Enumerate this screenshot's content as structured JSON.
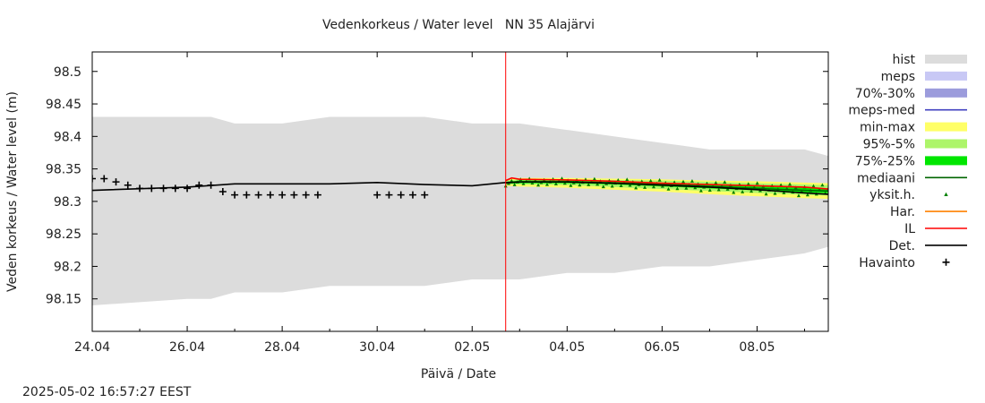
{
  "chart_data": {
    "type": "line",
    "title": "Vedenkorkeus / Water level   NN 35 Alajärvi",
    "xlabel": "Päivä / Date",
    "ylabel": "Veden korkeus / Water level (m)",
    "x_range": [
      "2025-04-24",
      "2025-05-09T12:00"
    ],
    "ylim": [
      98.1,
      98.53
    ],
    "x_ticks": [
      "24.04",
      "26.04",
      "28.04",
      "30.04",
      "02.05",
      "04.05",
      "06.05",
      "08.05"
    ],
    "y_ticks": [
      "98.15",
      "98.2",
      "98.25",
      "98.3",
      "98.35",
      "98.4",
      "98.45",
      "98.5"
    ],
    "current_time": "2025-05-02T16:57",
    "grid": false,
    "legend_position": "right",
    "legend": [
      {
        "label": "hist",
        "color": "#dcdcdc",
        "kind": "band"
      },
      {
        "label": "meps",
        "color": "#c8c8f5",
        "kind": "band"
      },
      {
        "label": "70%-30%",
        "color": "#9c9cdc",
        "kind": "band"
      },
      {
        "label": "meps-med",
        "color": "#4040c0",
        "kind": "line"
      },
      {
        "label": "min-max",
        "color": "#ffff66",
        "kind": "band"
      },
      {
        "label": "95%-5%",
        "color": "#adf56a",
        "kind": "band"
      },
      {
        "label": "75%-25%",
        "color": "#00e600",
        "kind": "band"
      },
      {
        "label": "mediaani",
        "color": "#006400",
        "kind": "line"
      },
      {
        "label": "yksit.h.",
        "color": "#008000",
        "kind": "marker"
      },
      {
        "label": "Har.",
        "color": "#ff8000",
        "kind": "line"
      },
      {
        "label": "IL",
        "color": "#ff0000",
        "kind": "line"
      },
      {
        "label": "Det.",
        "color": "#000000",
        "kind": "line"
      },
      {
        "label": "Havainto",
        "color": "#000000",
        "kind": "plus"
      }
    ],
    "series": [
      {
        "name": "hist",
        "kind": "band",
        "x": [
          "2025-04-24",
          "2025-04-26",
          "2025-04-26T12:00",
          "2025-04-27",
          "2025-04-28",
          "2025-04-29",
          "2025-04-30",
          "2025-05-01",
          "2025-05-02",
          "2025-05-03",
          "2025-05-04",
          "2025-05-05",
          "2025-05-06",
          "2025-05-07",
          "2025-05-08",
          "2025-05-09",
          "2025-05-09T12:00"
        ],
        "lower": [
          98.14,
          98.15,
          98.15,
          98.16,
          98.16,
          98.17,
          98.17,
          98.17,
          98.18,
          98.18,
          98.19,
          98.19,
          98.2,
          98.2,
          98.21,
          98.22,
          98.23
        ],
        "upper": [
          98.43,
          98.43,
          98.43,
          98.42,
          98.42,
          98.43,
          98.43,
          98.43,
          98.42,
          98.42,
          98.41,
          98.4,
          98.39,
          98.38,
          98.38,
          98.38,
          98.37
        ]
      },
      {
        "name": "Det.",
        "kind": "line",
        "x": [
          "2025-04-24",
          "2025-04-26",
          "2025-04-27",
          "2025-04-28",
          "2025-04-29",
          "2025-04-30",
          "2025-05-01",
          "2025-05-02",
          "2025-05-02T16:57",
          "2025-05-03",
          "2025-05-04",
          "2025-05-05",
          "2025-05-06",
          "2025-05-07",
          "2025-05-08",
          "2025-05-09",
          "2025-05-09T12:00"
        ],
        "y": [
          98.317,
          98.322,
          98.327,
          98.327,
          98.327,
          98.329,
          98.326,
          98.324,
          98.329,
          98.33,
          98.33,
          98.328,
          98.325,
          98.322,
          98.318,
          98.313,
          98.311
        ]
      },
      {
        "name": "IL",
        "kind": "line",
        "x": [
          "2025-05-02T16:57",
          "2025-05-02T20:00",
          "2025-05-03",
          "2025-05-04",
          "2025-05-05",
          "2025-05-06",
          "2025-05-07",
          "2025-05-08",
          "2025-05-09",
          "2025-05-09T12:00"
        ],
        "y": [
          98.332,
          98.336,
          98.334,
          98.333,
          98.331,
          98.328,
          98.326,
          98.324,
          98.322,
          98.319
        ]
      },
      {
        "name": "mediaani",
        "kind": "line",
        "x": [
          "2025-05-02T16:57",
          "2025-05-03",
          "2025-05-04",
          "2025-05-05",
          "2025-05-06",
          "2025-05-07",
          "2025-05-08",
          "2025-05-09",
          "2025-05-09T12:00"
        ],
        "y": [
          98.328,
          98.33,
          98.33,
          98.328,
          98.326,
          98.323,
          98.32,
          98.317,
          98.316
        ]
      },
      {
        "name": "min-max",
        "kind": "band",
        "x": [
          "2025-05-02T16:57",
          "2025-05-03",
          "2025-05-04",
          "2025-05-05",
          "2025-05-06",
          "2025-05-07",
          "2025-05-08",
          "2025-05-09",
          "2025-05-09T12:00"
        ],
        "lower": [
          98.324,
          98.323,
          98.321,
          98.318,
          98.315,
          98.311,
          98.308,
          98.305,
          98.304
        ],
        "upper": [
          98.334,
          98.336,
          98.336,
          98.335,
          98.334,
          98.332,
          98.331,
          98.329,
          98.328
        ]
      },
      {
        "name": "95%-5%",
        "kind": "band",
        "x": [
          "2025-05-02T16:57",
          "2025-05-03",
          "2025-05-04",
          "2025-05-05",
          "2025-05-06",
          "2025-05-07",
          "2025-05-08",
          "2025-05-09",
          "2025-05-09T12:00"
        ],
        "lower": [
          98.326,
          98.326,
          98.325,
          98.322,
          98.319,
          98.316,
          98.313,
          98.31,
          98.309
        ],
        "upper": [
          98.332,
          98.334,
          98.334,
          98.333,
          98.332,
          98.33,
          98.328,
          98.326,
          98.325
        ]
      },
      {
        "name": "75%-25%",
        "kind": "band",
        "x": [
          "2025-05-02T16:57",
          "2025-05-03",
          "2025-05-04",
          "2025-05-05",
          "2025-05-06",
          "2025-05-07",
          "2025-05-08",
          "2025-05-09",
          "2025-05-09T12:00"
        ],
        "lower": [
          98.327,
          98.328,
          98.328,
          98.326,
          98.323,
          98.32,
          98.317,
          98.314,
          98.313
        ],
        "upper": [
          98.33,
          98.332,
          98.332,
          98.33,
          98.328,
          98.326,
          98.323,
          98.321,
          98.32
        ]
      },
      {
        "name": "Havainto",
        "kind": "plus",
        "x": [
          "2025-04-24",
          "2025-04-24T06:00",
          "2025-04-24T12:00",
          "2025-04-24T18:00",
          "2025-04-25",
          "2025-04-25T06:00",
          "2025-04-25T12:00",
          "2025-04-25T18:00",
          "2025-04-26",
          "2025-04-26T06:00",
          "2025-04-26T12:00",
          "2025-04-26T18:00",
          "2025-04-27",
          "2025-04-27T06:00",
          "2025-04-27T12:00",
          "2025-04-27T18:00",
          "2025-04-28",
          "2025-04-28T06:00",
          "2025-04-28T12:00",
          "2025-04-28T18:00",
          "2025-04-30",
          "2025-04-30T06:00",
          "2025-04-30T12:00",
          "2025-04-30T18:00",
          "2025-05-01"
        ],
        "y": [
          98.335,
          98.335,
          98.33,
          98.325,
          98.32,
          98.32,
          98.32,
          98.32,
          98.32,
          98.325,
          98.325,
          98.315,
          98.31,
          98.31,
          98.31,
          98.31,
          98.31,
          98.31,
          98.31,
          98.31,
          98.31,
          98.31,
          98.31,
          98.31,
          98.31
        ]
      }
    ]
  },
  "timestamp": "2025-05-02 16:57:27 EEST"
}
